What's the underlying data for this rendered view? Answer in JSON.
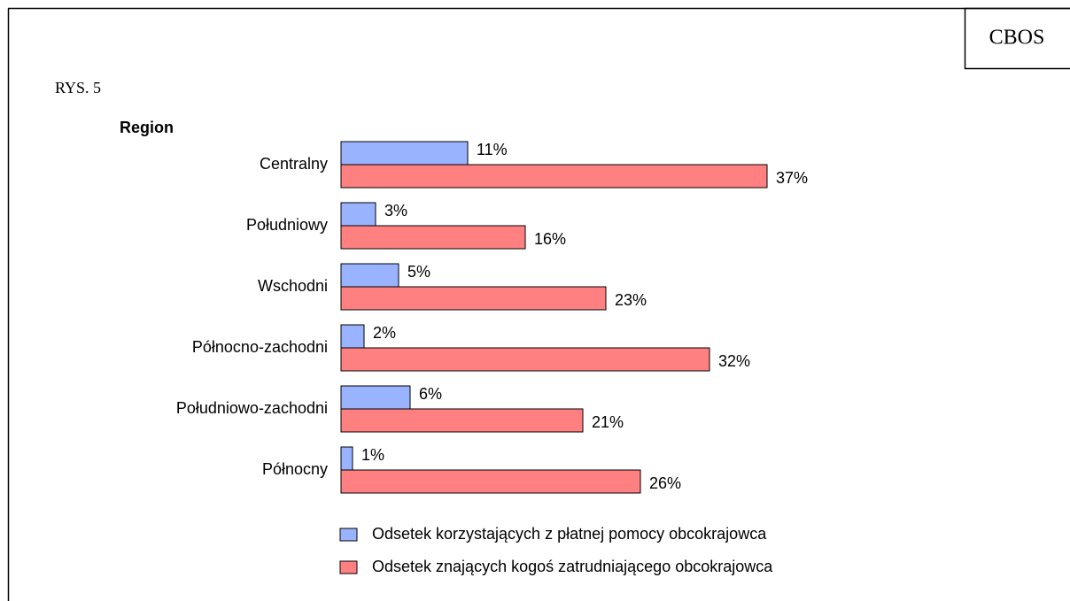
{
  "chart_data": {
    "type": "bar",
    "orientation": "horizontal",
    "source": "CBOS",
    "figure_label": "RYS. 5",
    "y_label": "Region",
    "categories": [
      "Centralny",
      "Południowy",
      "Wschodni",
      "Północno-zachodni",
      "Południowo-zachodni",
      "Północny"
    ],
    "series": [
      {
        "name": "Odsetek korzystających z płatnej pomocy obcokrajowca",
        "color": "#99b3ff",
        "values": [
          11,
          3,
          5,
          2,
          6,
          1
        ],
        "value_labels": [
          "11%",
          "3%",
          "5%",
          "2%",
          "6%",
          "1%"
        ]
      },
      {
        "name": "Odsetek znających kogoś zatrudniającego obcokrajowca",
        "color": "#ff8080",
        "values": [
          37,
          16,
          23,
          32,
          21,
          26
        ],
        "value_labels": [
          "37%",
          "16%",
          "23%",
          "32%",
          "21%",
          "26%"
        ]
      }
    ]
  }
}
